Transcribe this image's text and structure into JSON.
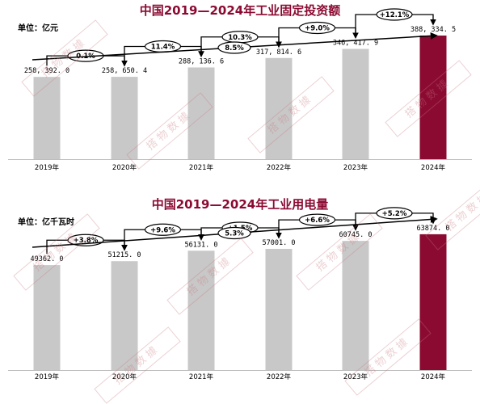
{
  "watermark": {
    "text": "搭物数據",
    "color": "#d08a94"
  },
  "colors": {
    "bar": "#c8c8c8",
    "highlight": "#8b0a32",
    "title": "#8b0a32"
  },
  "chart_data": [
    {
      "type": "bar",
      "title": "中国2019—2024年工业固定投资额",
      "unit": "单位：亿元",
      "categories": [
        "2019年",
        "2020年",
        "2021年",
        "2022年",
        "2023年",
        "2024年"
      ],
      "values": [
        258392.0,
        258650.4,
        288136.6,
        317814.6,
        346417.9,
        388334.5
      ],
      "value_labels": [
        "258, 392. 0",
        "258, 650. 4",
        "288, 136. 6",
        "317, 814. 6",
        "346, 417. 9",
        "388, 334. 5"
      ],
      "growth": [
        "0.1%",
        "11.4%",
        "10.3%",
        "+9.0%",
        "+12.1%"
      ],
      "overall_growth": "8.5%",
      "ylim": [
        0,
        500000
      ],
      "grid": false,
      "legend": "none"
    },
    {
      "type": "bar",
      "title": "中国2019—2024年工业用电量",
      "unit": "单位：亿千瓦时",
      "categories": [
        "2019年",
        "2020年",
        "2021年",
        "2022年",
        "2023年",
        "2024年"
      ],
      "values": [
        49362.0,
        51215.0,
        56131.0,
        57001.0,
        60745.0,
        63874.0
      ],
      "value_labels": [
        "49362. 0",
        "51215. 0",
        "56131. 0",
        "57001. 0",
        "60745. 0",
        "63874. 0"
      ],
      "growth": [
        "+3.8%",
        "+9.6%",
        "+1.5%",
        "+6.6%",
        "+5.2%"
      ],
      "overall_growth": "5.3%",
      "ylim": [
        0,
        76000
      ],
      "grid": false,
      "legend": "none"
    }
  ]
}
